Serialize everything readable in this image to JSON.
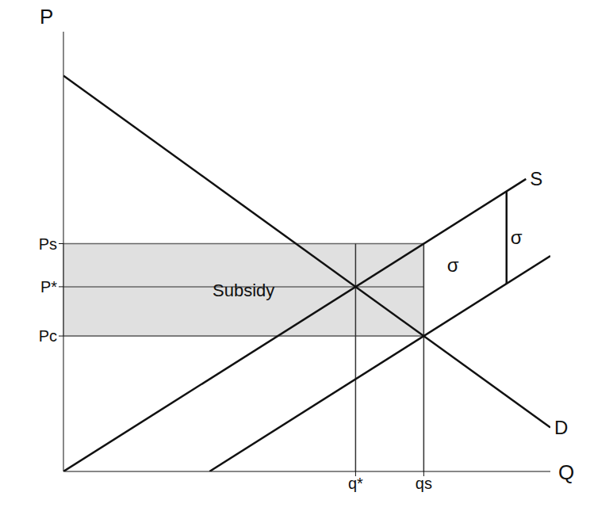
{
  "chart_data": {
    "type": "line",
    "x_label": "Q",
    "y_label": "P",
    "xlim": [
      0,
      10
    ],
    "ylim": [
      0,
      10
    ],
    "xticks": [
      {
        "value": 6,
        "label": "q*"
      },
      {
        "value": 7.4,
        "label": "qs"
      }
    ],
    "yticks": [
      {
        "value": 3.08,
        "label": "Pc"
      },
      {
        "value": 4.2,
        "label": "P*"
      },
      {
        "value": 5.18,
        "label": "Ps"
      }
    ],
    "series": [
      {
        "name": "D",
        "color": "#111111",
        "x": [
          0,
          10
        ],
        "values": [
          9,
          1
        ]
      },
      {
        "name": "S",
        "color": "#111111",
        "x": [
          0,
          9.5
        ],
        "values": [
          0,
          6.65
        ]
      },
      {
        "color": "#111111",
        "x": [
          3,
          10
        ],
        "values": [
          0,
          4.9
        ]
      }
    ],
    "shaded": {
      "x": [
        0,
        7.4
      ],
      "y": [
        3.08,
        5.18
      ],
      "label": "Subsidy",
      "color": "#bbbbbb"
    },
    "subsidy_marker": {
      "x": 9.1,
      "from": 4.27,
      "to": 6.37,
      "label": "σ"
    },
    "annotations": [
      {
        "text": "σ",
        "x": 8.0,
        "y": 4.7
      }
    ],
    "grid": false
  }
}
